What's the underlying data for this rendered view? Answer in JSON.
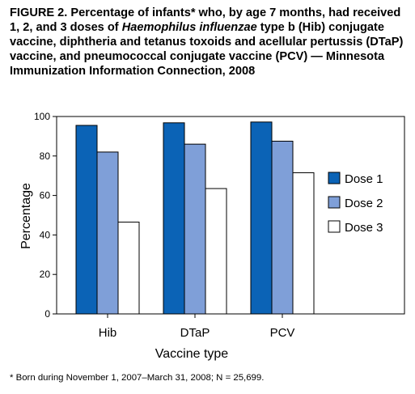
{
  "figure": {
    "title_prefix": "FIGURE 2. Percentage of infants* who, by age 7 months, had received 1, 2, and 3 doses of ",
    "title_italic": "Haemophilus influenzae",
    "title_suffix": " type b (Hib) conjugate vaccine, diphtheria and tetanus toxoids and acellular pertussis (DTaP) vaccine, and pneumococcal conjugate vaccine (PCV) — Minnesota Immunization Information Connection, 2008",
    "footnote": "* Born during November 1, 2007–March 31, 2008; N = 25,699."
  },
  "chart_data": {
    "type": "bar",
    "categories": [
      "Hib",
      "DTaP",
      "PCV"
    ],
    "series": [
      {
        "name": "Dose 1",
        "color": "#0b63b6",
        "values": [
          95.5,
          96.8,
          97.2
        ]
      },
      {
        "name": "Dose 2",
        "color": "#7f9fd8",
        "values": [
          82,
          86,
          87.5
        ]
      },
      {
        "name": "Dose 3",
        "color": "#ffffff",
        "values": [
          46.5,
          63.5,
          71.5
        ]
      }
    ],
    "xlabel": "Vaccine type",
    "ylabel": "Percentage",
    "ylim": [
      0,
      100
    ],
    "yticks": [
      0,
      20,
      40,
      60,
      80,
      100
    ],
    "grid": false,
    "legend_position": "right"
  }
}
